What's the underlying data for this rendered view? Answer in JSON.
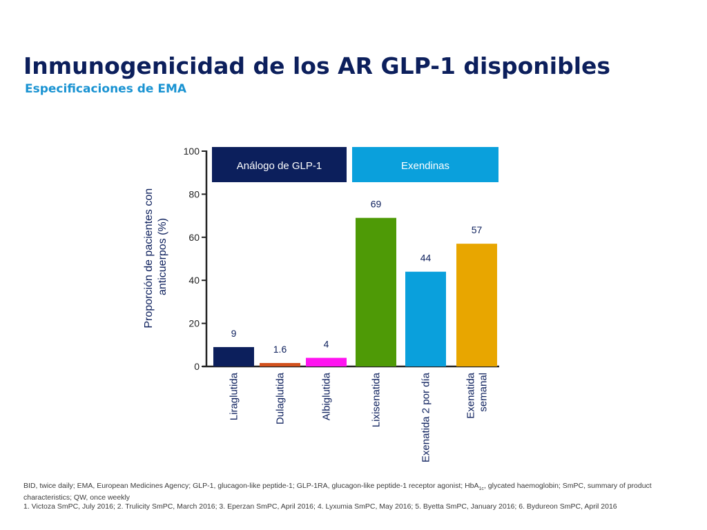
{
  "title": "Inmunogenicidad de los AR GLP-1 disponibles",
  "subtitle": "Especificaciones de EMA",
  "colors": {
    "title": "#0c1f5c",
    "subtitle": "#1a93d2",
    "group_analogo": "#0c1f5c",
    "group_exendinas": "#0aa0dc"
  },
  "chart_data": {
    "type": "bar",
    "ylabel": "Proporción de pacientes con anticuerpos (%)",
    "ylim": [
      0,
      100
    ],
    "yticks": [
      0,
      20,
      40,
      60,
      80,
      100
    ],
    "categories": [
      "Liraglutida",
      "Dulaglutida",
      "Albiglutida",
      "Lixisenatida",
      "Exenatida 2 por día",
      "Exenatida semanal"
    ],
    "values": [
      9,
      1.6,
      4,
      69,
      44,
      57
    ],
    "value_labels": [
      "9",
      "1.6",
      "4",
      "69",
      "44",
      "57"
    ],
    "bar_colors": [
      "#0c1f5c",
      "#d2521e",
      "#ff14f0",
      "#4e9a06",
      "#0aa0dc",
      "#e8a600"
    ],
    "groups": [
      {
        "label": "Análogo de GLP-1",
        "categories": [
          0,
          1,
          2
        ],
        "color": "#0c1f5c"
      },
      {
        "label": "Exendinas",
        "categories": [
          3,
          4,
          5
        ],
        "color": "#0aa0dc"
      }
    ],
    "grid": false,
    "legend": "none"
  },
  "footnotes": {
    "line1_pre": "BID, twice daily; EMA, European Medicines Agency; GLP-1, glucagon-like peptide-1; GLP-1RA, glucagon-like peptide-1 receptor agonist; HbA",
    "line1_sub": "1c",
    "line1_post": ", glycated haemoglobin; SmPC, summary of product characteristics; QW, once weekly",
    "line2": "1. Victoza SmPC, July 2016; 2. Trulicity SmPC, March 2016; 3. Eperzan SmPC, April 2016; 4. Lyxumia SmPC, May 2016; 5. Byetta SmPC, January 2016; 6. Bydureon SmPC, April 2016"
  }
}
